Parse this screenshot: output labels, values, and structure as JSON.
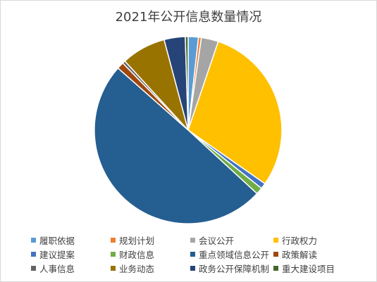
{
  "chart_data": {
    "type": "pie",
    "title": "2021年公开信息数量情况",
    "legend_position": "bottom",
    "slices": [
      {
        "label": "履职依据",
        "value": 1.8,
        "color": "#5b9bd5"
      },
      {
        "label": "规划计划",
        "value": 0.5,
        "color": "#ed7d31"
      },
      {
        "label": "会议公开",
        "value": 3.0,
        "color": "#a5a5a5"
      },
      {
        "label": "行政权力",
        "value": 30.0,
        "color": "#ffc000"
      },
      {
        "label": "建议提案",
        "value": 1.0,
        "color": "#4472c4"
      },
      {
        "label": "财政信息",
        "value": 1.2,
        "color": "#70ad47"
      },
      {
        "label": "重点领域信息公开",
        "value": 50.5,
        "color": "#255e91"
      },
      {
        "label": "政策解读",
        "value": 1.2,
        "color": "#9e480e"
      },
      {
        "label": "人事信息",
        "value": 0.5,
        "color": "#636363"
      },
      {
        "label": "业务动态",
        "value": 7.8,
        "color": "#997300"
      },
      {
        "label": "政务公开保障机制",
        "value": 3.7,
        "color": "#264478"
      },
      {
        "label": "重大建设项目",
        "value": 0.5,
        "color": "#43682b"
      }
    ]
  }
}
